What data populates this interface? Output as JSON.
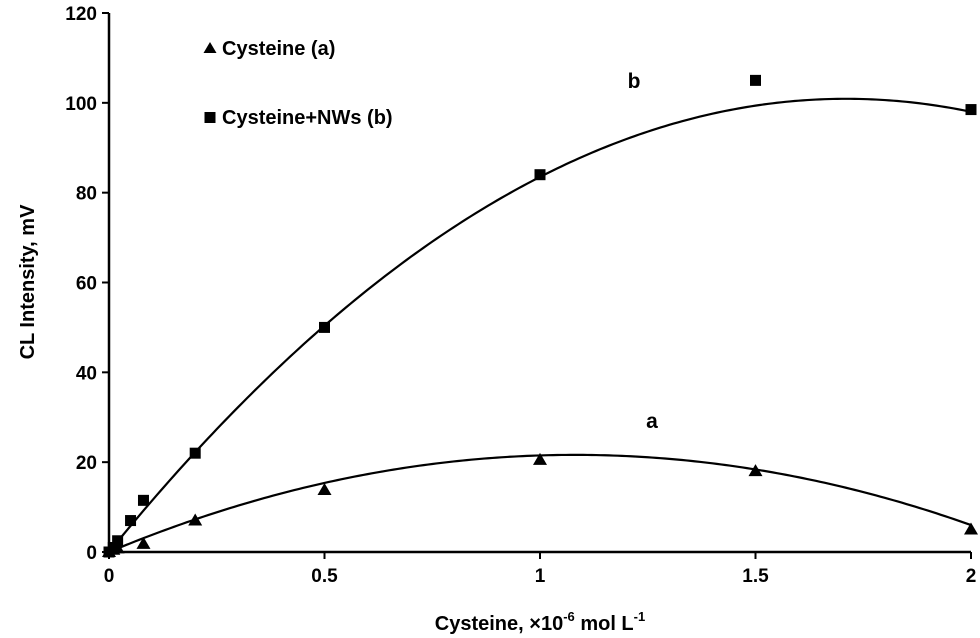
{
  "chart_data": {
    "type": "scatter",
    "title": "",
    "xlabel": {
      "main": "Cysteine, ×10",
      "sup1": "-6",
      "mid": " mol L",
      "sup2": "-1"
    },
    "ylabel": "CL Intensity, mV",
    "xlim": [
      0,
      2
    ],
    "ylim": [
      0,
      120
    ],
    "xticks": [
      0,
      0.5,
      1,
      1.5,
      2
    ],
    "xtick_labels": [
      "0",
      "0.5",
      "1",
      "1.5",
      "2"
    ],
    "yticks": [
      0,
      20,
      40,
      60,
      80,
      100,
      120
    ],
    "ytick_labels": [
      "0",
      "20",
      "40",
      "60",
      "80",
      "100",
      "120"
    ],
    "grid": false,
    "legend_position": "top-left",
    "series": [
      {
        "name": "Cysteine (a)",
        "curve_label": "a",
        "marker": "triangle",
        "x": [
          0,
          0.01,
          0.02,
          0.08,
          0.2,
          0.5,
          1.0,
          1.5,
          2.0
        ],
        "y": [
          0,
          0.5,
          0.8,
          1.8,
          7,
          13.8,
          20.5,
          18,
          5
        ],
        "fit": [
          -18.5,
          40,
          0
        ]
      },
      {
        "name": "Cysteine+NWs (b)",
        "curve_label": "b",
        "marker": "square",
        "x": [
          0,
          0.01,
          0.02,
          0.05,
          0.08,
          0.2,
          0.5,
          1.0,
          1.5,
          2.0
        ],
        "y": [
          0,
          1,
          2.5,
          7,
          11.5,
          22,
          50,
          84,
          105,
          98.5
        ],
        "fit": [
          -34.5,
          118,
          0
        ]
      }
    ]
  }
}
